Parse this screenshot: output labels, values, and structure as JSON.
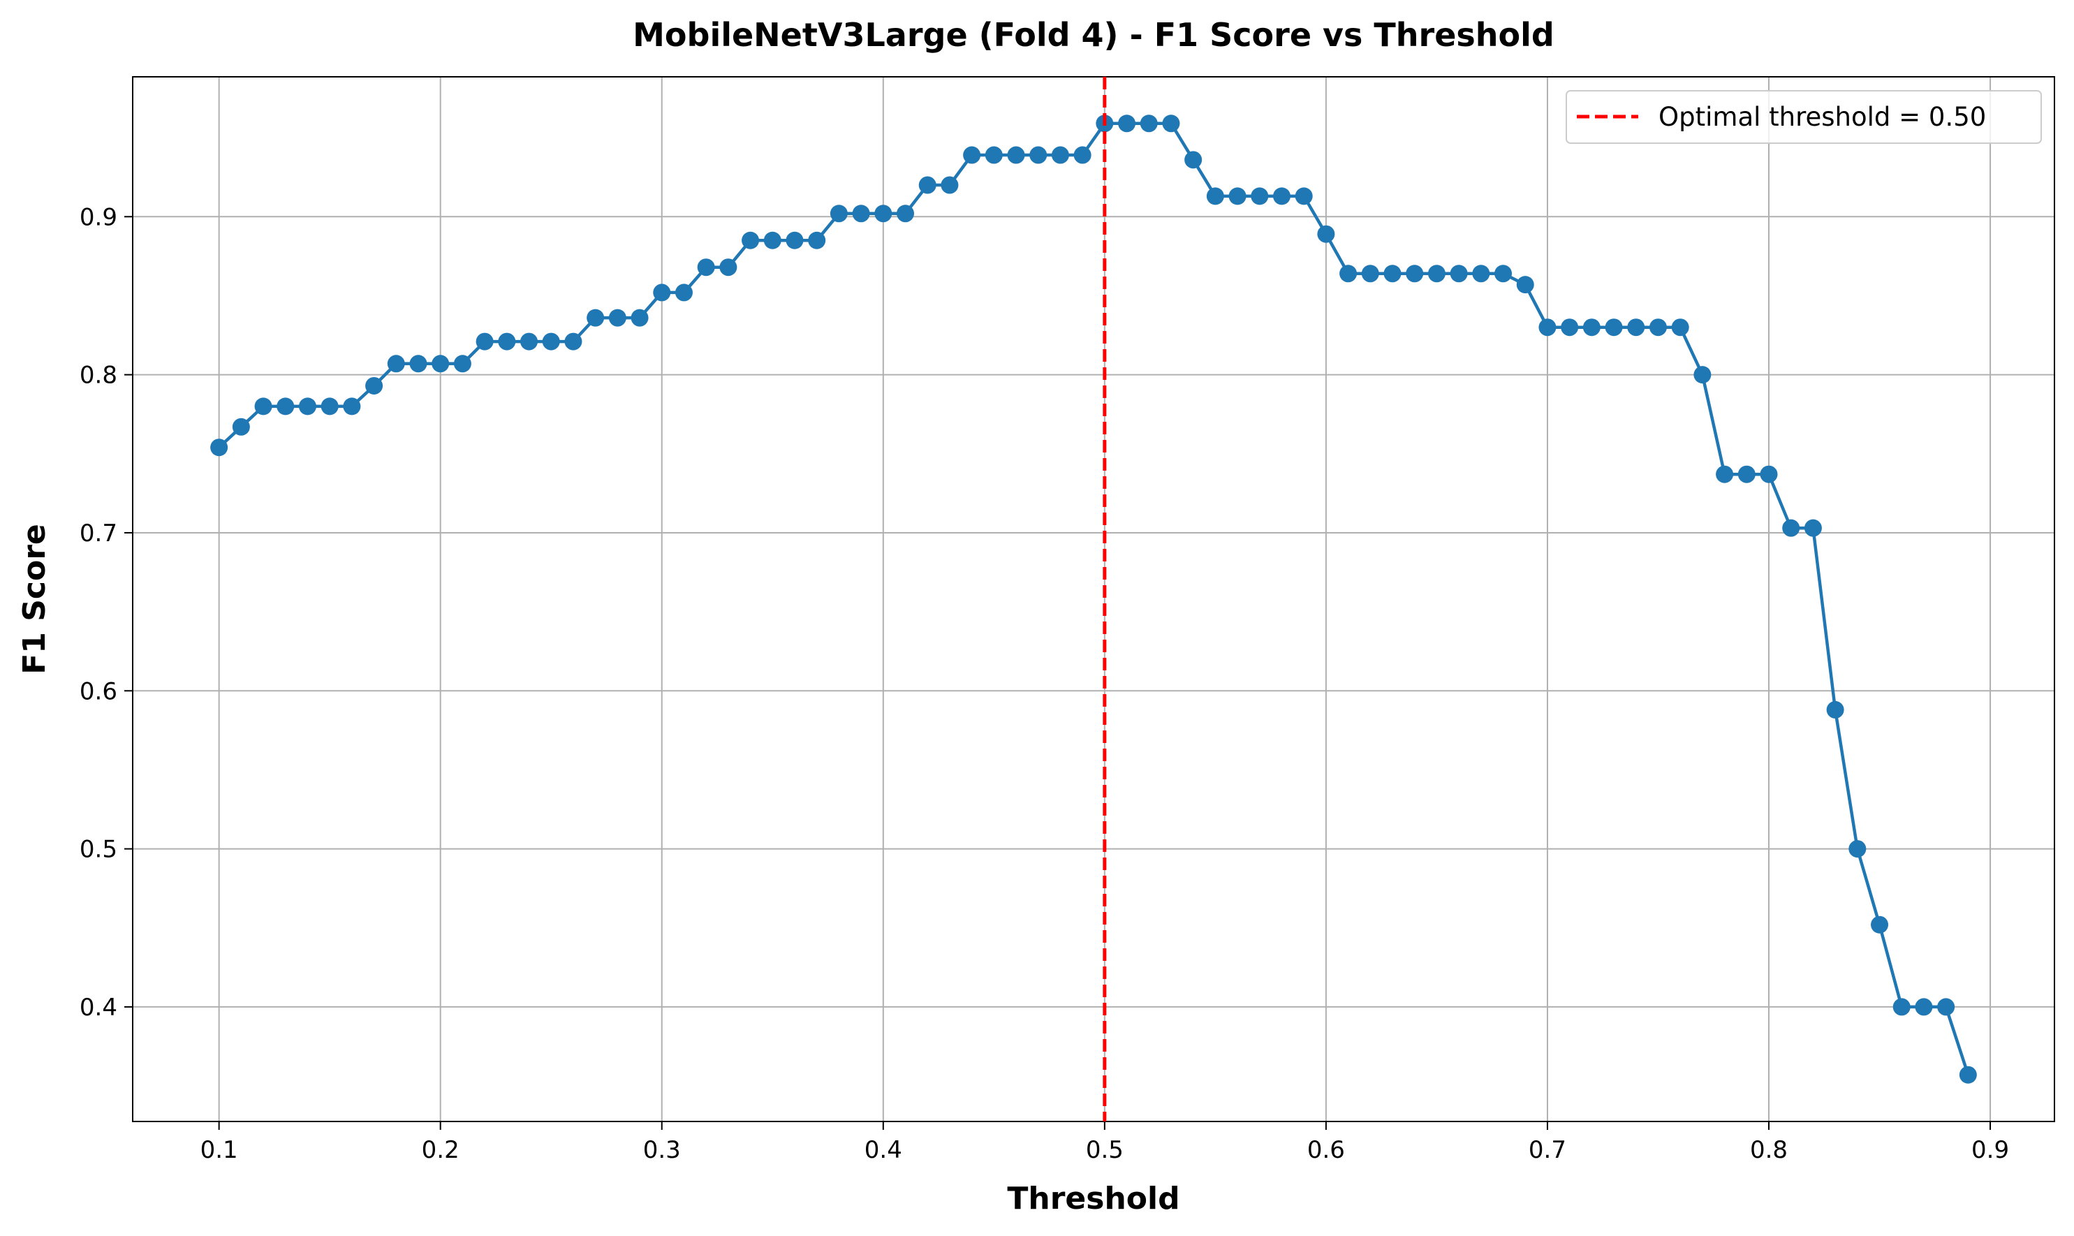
{
  "chart_data": {
    "type": "line",
    "title": "MobileNetV3Large (Fold 4) - F1 Score vs Threshold",
    "xlabel": "Threshold",
    "ylabel": "F1 Score",
    "xlim": [
      0.061,
      0.929
    ],
    "ylim": [
      0.3275,
      0.9885
    ],
    "x_ticks": [
      0.1,
      0.2,
      0.3,
      0.4,
      0.5,
      0.6,
      0.7,
      0.8,
      0.9
    ],
    "y_ticks": [
      0.4,
      0.5,
      0.6,
      0.7,
      0.8,
      0.9
    ],
    "x_tick_labels": [
      "0.1",
      "0.2",
      "0.3",
      "0.4",
      "0.5",
      "0.6",
      "0.7",
      "0.8",
      "0.9"
    ],
    "y_tick_labels": [
      "0.4",
      "0.5",
      "0.6",
      "0.7",
      "0.8",
      "0.9"
    ],
    "grid": true,
    "legend_position": "top-right",
    "series": [
      {
        "color": "#1f77b4",
        "marker": "circle",
        "x": [
          0.1,
          0.11,
          0.12,
          0.13,
          0.14,
          0.15,
          0.16,
          0.17,
          0.18,
          0.19,
          0.2,
          0.21,
          0.22,
          0.23,
          0.24,
          0.25,
          0.26,
          0.27,
          0.28,
          0.29,
          0.3,
          0.31,
          0.32,
          0.33,
          0.34,
          0.35,
          0.36,
          0.37,
          0.38,
          0.39,
          0.4,
          0.41,
          0.42,
          0.43,
          0.44,
          0.45,
          0.46,
          0.47,
          0.48,
          0.49,
          0.5,
          0.51,
          0.52,
          0.53,
          0.54,
          0.55,
          0.56,
          0.57,
          0.58,
          0.59,
          0.6,
          0.61,
          0.62,
          0.63,
          0.64,
          0.65,
          0.66,
          0.67,
          0.68,
          0.69,
          0.7,
          0.71,
          0.72,
          0.73,
          0.74,
          0.75,
          0.76,
          0.77,
          0.78,
          0.79,
          0.8,
          0.81,
          0.82,
          0.83,
          0.84,
          0.85,
          0.86,
          0.87,
          0.88,
          0.89
        ],
        "y": [
          0.754,
          0.767,
          0.78,
          0.78,
          0.78,
          0.78,
          0.78,
          0.793,
          0.807,
          0.807,
          0.807,
          0.807,
          0.821,
          0.821,
          0.821,
          0.821,
          0.821,
          0.836,
          0.836,
          0.836,
          0.852,
          0.852,
          0.868,
          0.868,
          0.885,
          0.885,
          0.885,
          0.885,
          0.902,
          0.902,
          0.902,
          0.902,
          0.92,
          0.92,
          0.939,
          0.939,
          0.939,
          0.939,
          0.939,
          0.939,
          0.959,
          0.959,
          0.959,
          0.959,
          0.936,
          0.913,
          0.913,
          0.913,
          0.913,
          0.913,
          0.889,
          0.864,
          0.864,
          0.864,
          0.864,
          0.864,
          0.864,
          0.864,
          0.864,
          0.857,
          0.83,
          0.83,
          0.83,
          0.83,
          0.83,
          0.83,
          0.83,
          0.8,
          0.737,
          0.737,
          0.737,
          0.703,
          0.703,
          0.588,
          0.5,
          0.452,
          0.4,
          0.4,
          0.4,
          0.357
        ]
      }
    ],
    "threshold_line": {
      "x": 0.5,
      "color": "#ff0000",
      "style": "dashed",
      "label": "Optimal threshold = 0.50"
    }
  }
}
